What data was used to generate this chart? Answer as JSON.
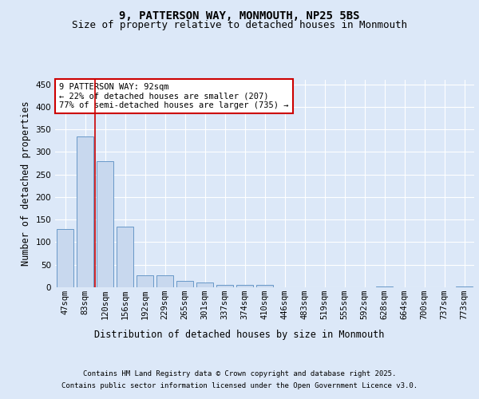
{
  "title_line1": "9, PATTERSON WAY, MONMOUTH, NP25 5BS",
  "title_line2": "Size of property relative to detached houses in Monmouth",
  "xlabel": "Distribution of detached houses by size in Monmouth",
  "ylabel": "Number of detached properties",
  "categories": [
    "47sqm",
    "83sqm",
    "120sqm",
    "156sqm",
    "192sqm",
    "229sqm",
    "265sqm",
    "301sqm",
    "337sqm",
    "374sqm",
    "410sqm",
    "446sqm",
    "483sqm",
    "519sqm",
    "555sqm",
    "592sqm",
    "628sqm",
    "664sqm",
    "700sqm",
    "737sqm",
    "773sqm"
  ],
  "values": [
    130,
    335,
    280,
    135,
    27,
    27,
    15,
    10,
    6,
    6,
    5,
    0,
    0,
    0,
    0,
    0,
    2,
    0,
    0,
    0,
    2
  ],
  "bar_color": "#c8d8ee",
  "bar_edge_color": "#6898c8",
  "vline_x_index": 1.5,
  "vline_color": "#cc0000",
  "annotation_text": "9 PATTERSON WAY: 92sqm\n← 22% of detached houses are smaller (207)\n77% of semi-detached houses are larger (735) →",
  "annotation_box_color": "#ffffff",
  "annotation_box_edge": "#cc0000",
  "bg_color": "#dce8f8",
  "plot_bg_color": "#dce8f8",
  "grid_color": "#ffffff",
  "ylim": [
    0,
    460
  ],
  "yticks": [
    0,
    50,
    100,
    150,
    200,
    250,
    300,
    350,
    400,
    450
  ],
  "footer_line1": "Contains HM Land Registry data © Crown copyright and database right 2025.",
  "footer_line2": "Contains public sector information licensed under the Open Government Licence v3.0.",
  "title_fontsize": 10,
  "subtitle_fontsize": 9,
  "axis_label_fontsize": 8.5,
  "tick_fontsize": 7.5,
  "annotation_fontsize": 7.5,
  "footer_fontsize": 6.5
}
